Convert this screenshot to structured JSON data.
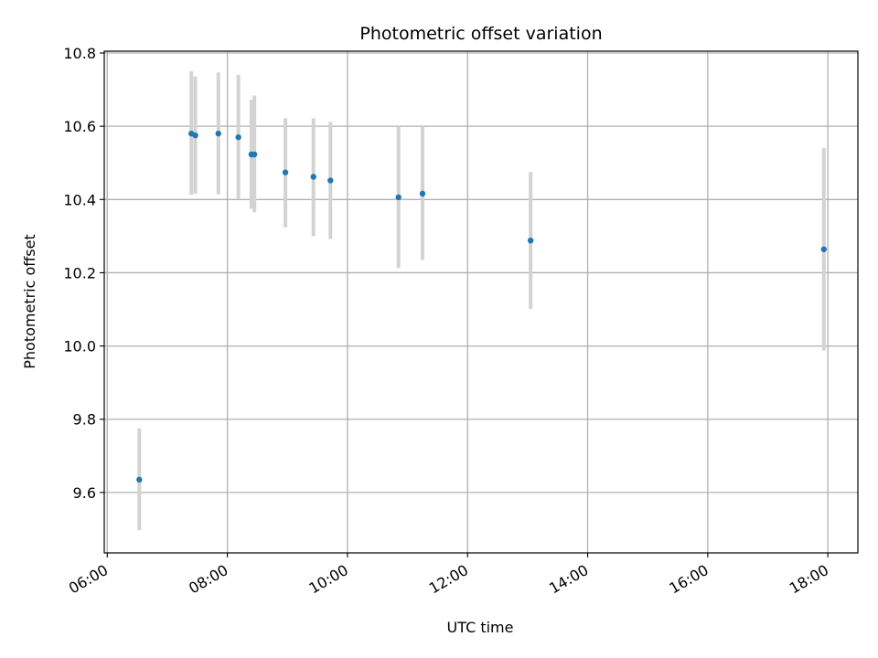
{
  "chart_data": {
    "type": "scatter",
    "title": "Photometric offset variation",
    "xlabel": "UTC time",
    "ylabel": "Photometric offset",
    "xlim": [
      "05:57",
      "18:30"
    ],
    "ylim": [
      9.435,
      10.805
    ],
    "x_ticks": [
      "06:00",
      "08:00",
      "10:00",
      "12:00",
      "14:00",
      "16:00",
      "18:00"
    ],
    "y_ticks": [
      9.6,
      9.8,
      10.0,
      10.2,
      10.4,
      10.6,
      10.8
    ],
    "y_tick_labels": [
      "9.6",
      "9.8",
      "10.0",
      "10.2",
      "10.4",
      "10.6",
      "10.8"
    ],
    "grid": true,
    "marker_color": "#1f77b4",
    "errorbar_color": "#d3d3d3",
    "points": [
      {
        "time": "06:32",
        "y": 9.635,
        "ymin": 9.497,
        "ymax": 9.775
      },
      {
        "time": "07:24",
        "y": 10.58,
        "ymin": 10.413,
        "ymax": 10.75
      },
      {
        "time": "07:28",
        "y": 10.575,
        "ymin": 10.416,
        "ymax": 10.736
      },
      {
        "time": "07:51",
        "y": 10.58,
        "ymin": 10.414,
        "ymax": 10.747
      },
      {
        "time": "08:11",
        "y": 10.57,
        "ymin": 10.403,
        "ymax": 10.74
      },
      {
        "time": "08:24",
        "y": 10.523,
        "ymin": 10.375,
        "ymax": 10.672
      },
      {
        "time": "08:27",
        "y": 10.523,
        "ymin": 10.365,
        "ymax": 10.684
      },
      {
        "time": "08:58",
        "y": 10.474,
        "ymin": 10.324,
        "ymax": 10.622
      },
      {
        "time": "09:26",
        "y": 10.462,
        "ymin": 10.3,
        "ymax": 10.622
      },
      {
        "time": "09:43",
        "y": 10.452,
        "ymin": 10.292,
        "ymax": 10.612
      },
      {
        "time": "10:51",
        "y": 10.406,
        "ymin": 10.213,
        "ymax": 10.6
      },
      {
        "time": "11:15",
        "y": 10.416,
        "ymin": 10.235,
        "ymax": 10.6
      },
      {
        "time": "13:03",
        "y": 10.288,
        "ymin": 10.101,
        "ymax": 10.475
      },
      {
        "time": "17:56",
        "y": 10.264,
        "ymin": 9.988,
        "ymax": 10.541
      }
    ]
  }
}
